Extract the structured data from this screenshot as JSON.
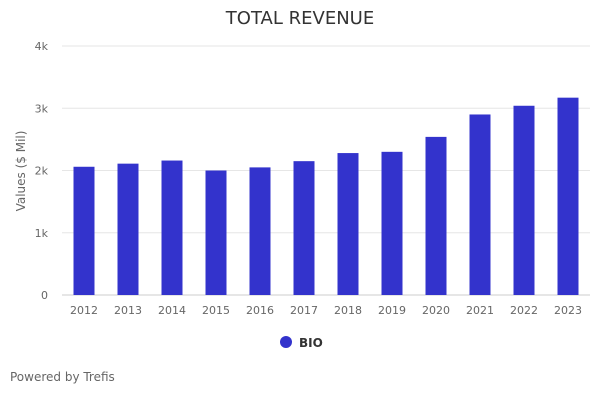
{
  "chart_data": {
    "type": "bar",
    "title": "TOTAL REVENUE",
    "ylabel": "Values ($ Mil)",
    "xlabel": "",
    "categories": [
      "2012",
      "2013",
      "2014",
      "2015",
      "2016",
      "2017",
      "2018",
      "2019",
      "2020",
      "2021",
      "2022",
      "2023"
    ],
    "series": [
      {
        "name": "BIO",
        "values": [
          2060,
          2110,
          2160,
          2000,
          2050,
          2150,
          2280,
          2300,
          2540,
          2900,
          3040,
          3170
        ],
        "color": "#3333cc"
      }
    ],
    "ylim": [
      0,
      4000
    ],
    "yticks": [
      {
        "value": 0,
        "label": "0"
      },
      {
        "value": 1000,
        "label": "1k"
      },
      {
        "value": 2000,
        "label": "2k"
      },
      {
        "value": 3000,
        "label": "3k"
      },
      {
        "value": 4000,
        "label": "4k"
      }
    ],
    "grid": true,
    "legend_position": "bottom-center"
  },
  "footer": {
    "text": "Powered by Trefis"
  },
  "colors": {
    "bar": "#3333cc",
    "grid": "#e6e6e6",
    "axis_text": "#666666",
    "title_text": "#333333"
  }
}
